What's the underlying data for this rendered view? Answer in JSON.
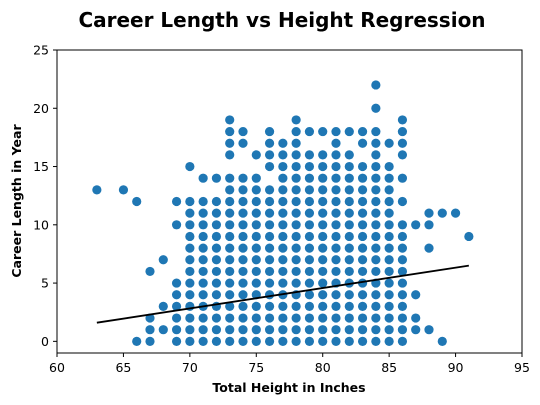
{
  "chart_data": {
    "type": "scatter",
    "title": "Career Length vs Height Regression",
    "xlabel": "Total Height in Inches",
    "ylabel": "Career Length in Year",
    "xlim": [
      60,
      95
    ],
    "ylim": [
      -1,
      25
    ],
    "xticks": [
      60,
      65,
      70,
      75,
      80,
      85,
      90,
      95
    ],
    "yticks": [
      0,
      5,
      10,
      15,
      20,
      25
    ],
    "grid": false,
    "colors": {
      "points": "#1f77b4",
      "regression_line": "#000000"
    },
    "regression_line": {
      "x": [
        63,
        91
      ],
      "y": [
        1.6,
        6.5
      ]
    },
    "points": [
      [
        63,
        13
      ],
      [
        65,
        13
      ],
      [
        66,
        12
      ],
      [
        66,
        0
      ],
      [
        67,
        6
      ],
      [
        67,
        2
      ],
      [
        67,
        1
      ],
      [
        67,
        0
      ],
      [
        68,
        7
      ],
      [
        68,
        3
      ],
      [
        68,
        1
      ],
      [
        69,
        12
      ],
      [
        69,
        10
      ],
      [
        69,
        5
      ],
      [
        69,
        4
      ],
      [
        69,
        3
      ],
      [
        69,
        2
      ],
      [
        69,
        1
      ],
      [
        69,
        0
      ],
      [
        70,
        15
      ],
      [
        70,
        12
      ],
      [
        70,
        11
      ],
      [
        70,
        10
      ],
      [
        70,
        9
      ],
      [
        70,
        8
      ],
      [
        70,
        7
      ],
      [
        70,
        6
      ],
      [
        70,
        5
      ],
      [
        70,
        4
      ],
      [
        70,
        3
      ],
      [
        70,
        2
      ],
      [
        70,
        1
      ],
      [
        70,
        0
      ],
      [
        88,
        11
      ],
      [
        88,
        10
      ],
      [
        88,
        8
      ],
      [
        88,
        1
      ],
      [
        89,
        11
      ],
      [
        89,
        0
      ],
      [
        90,
        11
      ],
      [
        91,
        9
      ]
    ],
    "column_ranges": [
      [
        71,
        0,
        14
      ],
      [
        72,
        0,
        14
      ],
      [
        73,
        0,
        19
      ],
      [
        74,
        0,
        18
      ],
      [
        75,
        0,
        17
      ],
      [
        76,
        0,
        18
      ],
      [
        77,
        0,
        18
      ],
      [
        78,
        0,
        19
      ],
      [
        79,
        0,
        18
      ],
      [
        80,
        0,
        18
      ],
      [
        81,
        0,
        18
      ],
      [
        82,
        0,
        18
      ],
      [
        83,
        0,
        18
      ],
      [
        84,
        0,
        22
      ],
      [
        85,
        0,
        17
      ],
      [
        86,
        0,
        19
      ],
      [
        87,
        0,
        10
      ]
    ],
    "column_gaps": [
      [
        71,
        13
      ],
      [
        72,
        13
      ],
      [
        73,
        15
      ],
      [
        74,
        16
      ],
      [
        74,
        15
      ],
      [
        75,
        15
      ],
      [
        75,
        17
      ],
      [
        76,
        14
      ],
      [
        77,
        18
      ],
      [
        79,
        17
      ],
      [
        80,
        17
      ],
      [
        82,
        17
      ],
      [
        83,
        16
      ],
      [
        84,
        21
      ],
      [
        84,
        19
      ],
      [
        85,
        16
      ],
      [
        86,
        15
      ],
      [
        86,
        13
      ],
      [
        86,
        11
      ]
    ],
    "column_removed": [
      [
        87,
        9
      ],
      [
        87,
        8
      ],
      [
        87,
        7
      ],
      [
        87,
        6
      ],
      [
        87,
        5
      ],
      [
        87,
        3
      ],
      [
        87,
        0
      ]
    ]
  }
}
